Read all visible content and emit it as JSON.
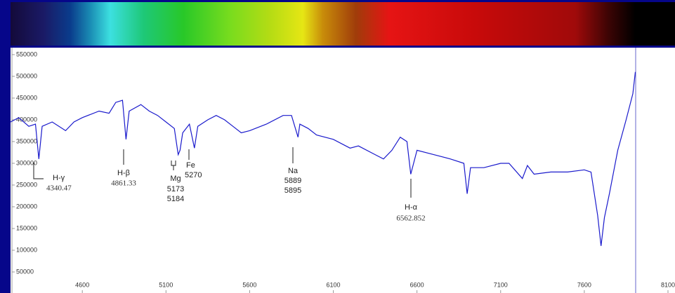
{
  "chart_data": {
    "type": "line",
    "color": "#1a1acc",
    "x": [
      4171,
      4220,
      4280,
      4320,
      4340,
      4360,
      4420,
      4500,
      4550,
      4600,
      4700,
      4760,
      4800,
      4840,
      4861,
      4880,
      4950,
      5000,
      5050,
      5100,
      5150,
      5173,
      5184,
      5200,
      5240,
      5270,
      5290,
      5350,
      5400,
      5450,
      5500,
      5550,
      5600,
      5700,
      5800,
      5850,
      5889,
      5900,
      5950,
      6000,
      6100,
      6200,
      6250,
      6350,
      6400,
      6450,
      6500,
      6540,
      6563,
      6600,
      6700,
      6800,
      6880,
      6900,
      6920,
      7000,
      7100,
      7150,
      7230,
      7260,
      7300,
      7400,
      7500,
      7600,
      7640,
      7680,
      7700,
      7720,
      7750,
      7800,
      7850,
      7890,
      7905
    ],
    "values": [
      395000,
      405000,
      385000,
      390000,
      310000,
      385000,
      395000,
      375000,
      395000,
      405000,
      420000,
      415000,
      440000,
      445000,
      355000,
      420000,
      435000,
      420000,
      410000,
      395000,
      380000,
      320000,
      330000,
      370000,
      390000,
      335000,
      385000,
      400000,
      410000,
      400000,
      385000,
      370000,
      375000,
      390000,
      410000,
      410000,
      360000,
      390000,
      380000,
      365000,
      355000,
      335000,
      340000,
      320000,
      310000,
      330000,
      360000,
      350000,
      275000,
      330000,
      320000,
      310000,
      300000,
      230000,
      290000,
      290000,
      300000,
      300000,
      265000,
      295000,
      275000,
      280000,
      280000,
      285000,
      280000,
      180000,
      110000,
      175000,
      230000,
      330000,
      400000,
      460000,
      510000
    ],
    "xlim": [
      4171,
      8142
    ],
    "ylim": [
      0,
      566000
    ],
    "xticks": [
      4600,
      5100,
      5600,
      6100,
      6600,
      7100,
      7600,
      8100
    ],
    "yticks": [
      50000,
      100000,
      150000,
      200000,
      250000,
      300000,
      350000,
      400000,
      450000,
      500000,
      550000
    ],
    "annotations": [
      {
        "label": "H-γ",
        "wavelengths": [
          "4340.47"
        ]
      },
      {
        "label": "H-β",
        "wavelengths": [
          "4861.33"
        ]
      },
      {
        "label": "Mg",
        "wavelengths": [
          "5173",
          "5184"
        ]
      },
      {
        "label": "Fe",
        "wavelengths": [
          "5270"
        ]
      },
      {
        "label": "Na",
        "wavelengths": [
          "5889",
          "5895"
        ]
      },
      {
        "label": "H-α",
        "wavelengths": [
          "6562.852"
        ]
      }
    ]
  }
}
